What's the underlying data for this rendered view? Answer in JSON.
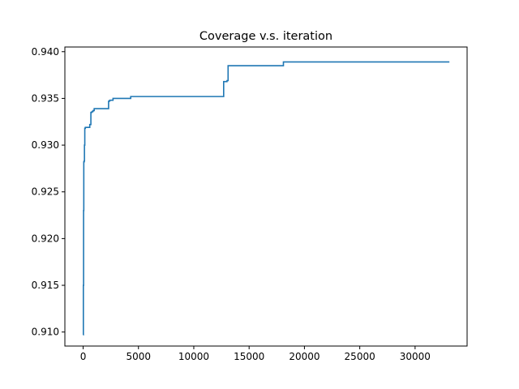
{
  "chart_data": {
    "type": "line",
    "title": "Coverage v.s. iteration",
    "xlabel": "",
    "ylabel": "",
    "xlim": [
      -1650,
      34700
    ],
    "ylim": [
      0.9085,
      0.9405
    ],
    "xticks": [
      0,
      5000,
      10000,
      15000,
      20000,
      25000,
      30000
    ],
    "xtick_labels": [
      "0",
      "5000",
      "10000",
      "15000",
      "20000",
      "25000",
      "30000"
    ],
    "yticks": [
      0.91,
      0.915,
      0.92,
      0.925,
      0.93,
      0.935,
      0.94
    ],
    "ytick_labels": [
      "0.910",
      "0.915",
      "0.920",
      "0.925",
      "0.930",
      "0.935",
      "0.940"
    ],
    "grid": false,
    "line_color": "#1f77b4",
    "series": [
      {
        "step": true,
        "x": [
          0,
          20,
          40,
          60,
          90,
          120,
          150,
          200,
          300,
          600,
          700,
          800,
          900,
          1000,
          2300,
          2400,
          2700,
          4300,
          12600,
          12700,
          13000,
          13100,
          18100,
          33100
        ],
        "y": [
          0.9097,
          0.915,
          0.923,
          0.9282,
          0.9283,
          0.93,
          0.9318,
          0.9319,
          0.9319,
          0.9322,
          0.9335,
          0.9336,
          0.9337,
          0.9339,
          0.9347,
          0.9348,
          0.935,
          0.9352,
          0.9352,
          0.9368,
          0.9369,
          0.9385,
          0.9389,
          0.9389
        ]
      }
    ]
  }
}
